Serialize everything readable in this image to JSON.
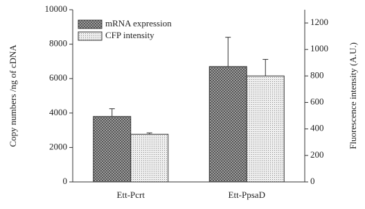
{
  "chart_data": {
    "type": "bar",
    "y_label": "Copy numbers /ng of cDNA",
    "y2_label": "Fluorescence intensity (A.U.)",
    "categories": [
      "Ett-Pcrt",
      "Ett-PpsaD"
    ],
    "series": [
      {
        "name": "mRNA expression",
        "color": "#8a8a8a",
        "values": [
          3800,
          6700
        ],
        "errors": [
          450,
          1700
        ]
      },
      {
        "name": "CFP intensity",
        "color": "#d8d8d8",
        "values": [
          360,
          800
        ],
        "errors": [
          10,
          125
        ],
        "axis": "y2"
      }
    ],
    "ylim": [
      0,
      10000
    ],
    "yticks": [
      0,
      2000,
      4000,
      6000,
      8000,
      10000
    ],
    "y2lim": [
      0,
      1300
    ],
    "y2ticks": [
      0,
      200,
      400,
      600,
      800,
      1000,
      1200
    ],
    "legend": "upper-left"
  }
}
